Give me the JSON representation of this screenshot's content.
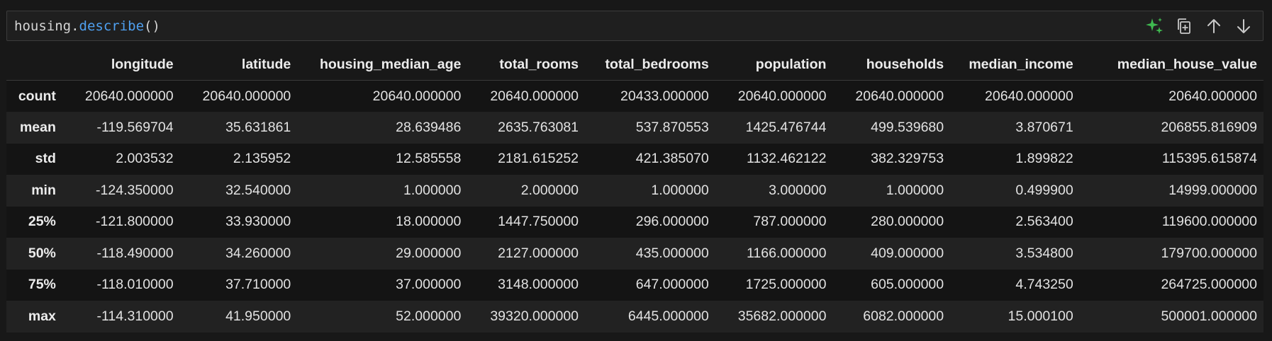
{
  "cell": {
    "code_object": "housing.",
    "code_method": "describe",
    "code_args": "()"
  },
  "toolbar": {
    "icons": [
      "sparkle-icon",
      "copy-icon",
      "arrow-up-icon",
      "arrow-down-icon"
    ],
    "accent_color": "#3fb950"
  },
  "table": {
    "columns": [
      "longitude",
      "latitude",
      "housing_median_age",
      "total_rooms",
      "total_bedrooms",
      "population",
      "households",
      "median_income",
      "median_house_value"
    ],
    "rows": [
      {
        "label": "count",
        "values": [
          "20640.000000",
          "20640.000000",
          "20640.000000",
          "20640.000000",
          "20433.000000",
          "20640.000000",
          "20640.000000",
          "20640.000000",
          "20640.000000"
        ]
      },
      {
        "label": "mean",
        "values": [
          "-119.569704",
          "35.631861",
          "28.639486",
          "2635.763081",
          "537.870553",
          "1425.476744",
          "499.539680",
          "3.870671",
          "206855.816909"
        ]
      },
      {
        "label": "std",
        "values": [
          "2.003532",
          "2.135952",
          "12.585558",
          "2181.615252",
          "421.385070",
          "1132.462122",
          "382.329753",
          "1.899822",
          "115395.615874"
        ]
      },
      {
        "label": "min",
        "values": [
          "-124.350000",
          "32.540000",
          "1.000000",
          "2.000000",
          "1.000000",
          "3.000000",
          "1.000000",
          "0.499900",
          "14999.000000"
        ]
      },
      {
        "label": "25%",
        "values": [
          "-121.800000",
          "33.930000",
          "18.000000",
          "1447.750000",
          "296.000000",
          "787.000000",
          "280.000000",
          "2.563400",
          "119600.000000"
        ]
      },
      {
        "label": "50%",
        "values": [
          "-118.490000",
          "34.260000",
          "29.000000",
          "2127.000000",
          "435.000000",
          "1166.000000",
          "409.000000",
          "3.534800",
          "179700.000000"
        ]
      },
      {
        "label": "75%",
        "values": [
          "-118.010000",
          "37.710000",
          "37.000000",
          "3148.000000",
          "647.000000",
          "1725.000000",
          "605.000000",
          "4.743250",
          "264725.000000"
        ]
      },
      {
        "label": "max",
        "values": [
          "-114.310000",
          "41.950000",
          "52.000000",
          "39320.000000",
          "6445.000000",
          "35682.000000",
          "6082.000000",
          "15.000100",
          "500001.000000"
        ]
      }
    ]
  }
}
